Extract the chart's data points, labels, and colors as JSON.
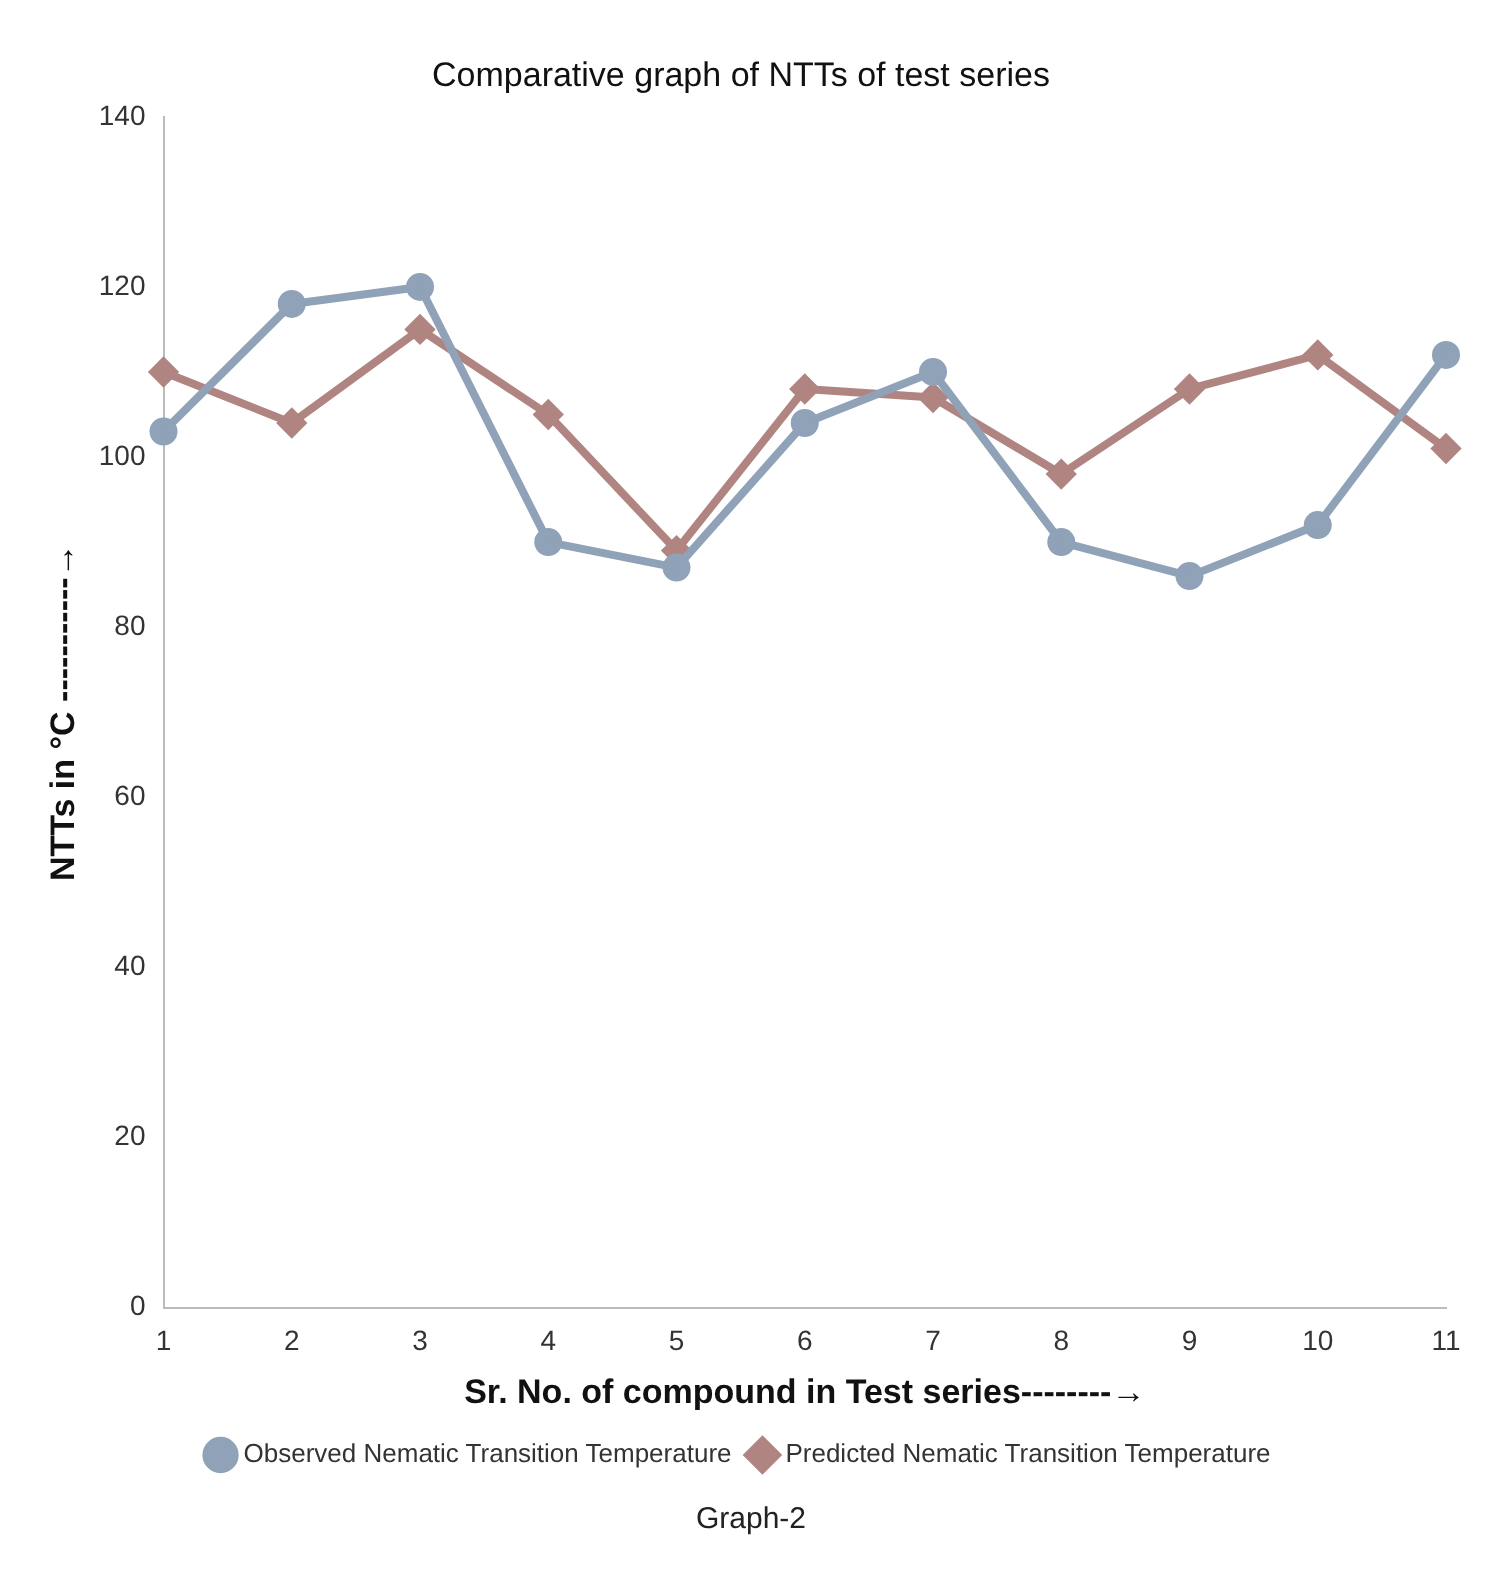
{
  "chart_data": {
    "type": "line",
    "title": "Comparative graph of NTTs of test series",
    "xlabel": "Sr. No. of compound in Test series--------→",
    "ylabel": "NTTs in °C -----------→",
    "categories": [
      "1",
      "2",
      "3",
      "4",
      "5",
      "6",
      "7",
      "8",
      "9",
      "10",
      "11"
    ],
    "series": [
      {
        "name": "Observed Nematic Transition Temperature",
        "color": "#8fa2b8",
        "marker": "circle",
        "values": [
          103,
          118,
          120,
          90,
          87,
          104,
          110,
          90,
          86,
          92,
          112
        ]
      },
      {
        "name": "Predicted Nematic Transition Temperature",
        "color": "#b08480",
        "marker": "diamond",
        "values": [
          110,
          104,
          115,
          105,
          89,
          108,
          107,
          98,
          108,
          112,
          101
        ]
      }
    ],
    "ylim": [
      0,
      140
    ],
    "yticks": [
      0,
      20,
      40,
      60,
      80,
      100,
      120,
      140
    ],
    "grid": false,
    "legend": "bottom",
    "annotations": [
      "Graph-2"
    ]
  }
}
